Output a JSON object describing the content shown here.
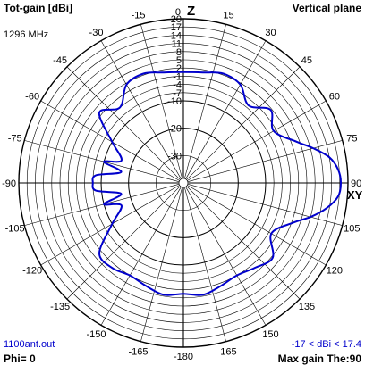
{
  "header": {
    "left_title": "Tot-gain [dBi]",
    "right_title": "Vertical plane",
    "frequency": "1296 MHz"
  },
  "footer": {
    "filename": "1100ant.out",
    "phi": "Phi= 0",
    "range": "-17 < dBi < 17.4",
    "max_gain": "Max gain The:90"
  },
  "colors": {
    "trace": "#0000cc",
    "grid": "#000000",
    "background": "#ffffff"
  },
  "chart_data": {
    "type": "polar",
    "axis_labels": {
      "top": "Z",
      "right": "XY"
    },
    "angle_ticks": [
      0,
      15,
      30,
      45,
      60,
      75,
      90,
      105,
      120,
      135,
      150,
      165,
      180,
      -165,
      -150,
      -135,
      -120,
      -105,
      -90,
      -75,
      -60,
      -45,
      -30,
      -15
    ],
    "angle_tick_labels": [
      "0",
      "15",
      "30",
      "45",
      "60",
      "75",
      "90",
      "105",
      "120",
      "135",
      "150",
      "165",
      "-180",
      "-165",
      "-150",
      "-135",
      "-120",
      "-105",
      "-90",
      "-75",
      "-60",
      "-45",
      "-30",
      "-15"
    ],
    "radial_ticks": [
      20,
      17,
      14,
      11,
      8,
      5,
      2,
      -1,
      -4,
      -7,
      -10,
      -20,
      -30
    ],
    "radial_range": [
      -40,
      20
    ],
    "grid": true,
    "series": [
      {
        "theta_deg": [
          0,
          10,
          20,
          30,
          40,
          50,
          60,
          70,
          75,
          80,
          85,
          90,
          95,
          100,
          105,
          110,
          120,
          130,
          140,
          150,
          160,
          170,
          180,
          190,
          200,
          210,
          220,
          230,
          240,
          250,
          255,
          260,
          265,
          270,
          275,
          280,
          285,
          290,
          300,
          310,
          320,
          330,
          340,
          350,
          360
        ],
        "gain_dbi": [
          0.5,
          1.0,
          2.5,
          1.5,
          -3,
          1.5,
          -2,
          4,
          9,
          14,
          16.6,
          17.4,
          16.6,
          13,
          8,
          2.5,
          -3,
          2.5,
          0.5,
          -1,
          0,
          1.5,
          0.5,
          1.5,
          0,
          -1,
          0.5,
          0,
          -10,
          -16,
          -10,
          -17,
          -8,
          -7,
          -8,
          -17,
          -10,
          -16,
          -10,
          0,
          -4,
          1.5,
          2.5,
          1.0,
          0.5
        ]
      }
    ]
  }
}
